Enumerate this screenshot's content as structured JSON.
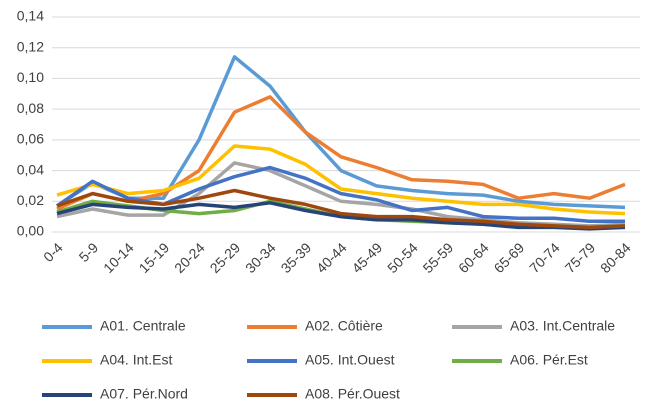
{
  "chart_data": {
    "type": "line",
    "categories": [
      "0-4",
      "5-9",
      "10-14",
      "15-19",
      "20-24",
      "25-29",
      "30-34",
      "35-39",
      "40-44",
      "45-49",
      "50-54",
      "55-59",
      "60-64",
      "65-69",
      "70-74",
      "75-79",
      "80-84"
    ],
    "ylim": [
      0,
      0.14
    ],
    "yticks": [
      {
        "value": 0,
        "label": "0,00"
      },
      {
        "value": 0.02,
        "label": "0,02"
      },
      {
        "value": 0.04,
        "label": "0,04"
      },
      {
        "value": 0.06,
        "label": "0,06"
      },
      {
        "value": 0.08,
        "label": "0,08"
      },
      {
        "value": 0.1,
        "label": "0,10"
      },
      {
        "value": 0.12,
        "label": "0,12"
      },
      {
        "value": 0.14,
        "label": "0,14"
      }
    ],
    "grid": true,
    "series": [
      {
        "name": "A01. Centrale",
        "color": "#5b9bd5",
        "values": [
          0.017,
          0.032,
          0.022,
          0.022,
          0.06,
          0.114,
          0.095,
          0.065,
          0.04,
          0.03,
          0.027,
          0.025,
          0.024,
          0.02,
          0.018,
          0.017,
          0.016
        ]
      },
      {
        "name": "A02. Côtière",
        "color": "#ed7d31",
        "values": [
          0.015,
          0.025,
          0.02,
          0.025,
          0.04,
          0.078,
          0.088,
          0.065,
          0.049,
          0.042,
          0.034,
          0.033,
          0.031,
          0.022,
          0.025,
          0.022,
          0.031
        ]
      },
      {
        "name": "A03. Int.Centrale",
        "color": "#a5a5a5",
        "values": [
          0.01,
          0.015,
          0.011,
          0.011,
          0.025,
          0.045,
          0.04,
          0.03,
          0.02,
          0.018,
          0.015,
          0.01,
          0.008,
          0.006,
          0.005,
          0.004,
          0.005
        ]
      },
      {
        "name": "A04. Int.Est",
        "color": "#ffc000",
        "values": [
          0.024,
          0.031,
          0.025,
          0.027,
          0.035,
          0.056,
          0.054,
          0.044,
          0.028,
          0.025,
          0.022,
          0.02,
          0.018,
          0.018,
          0.015,
          0.013,
          0.012
        ]
      },
      {
        "name": "A05. Int.Ouest",
        "color": "#4472c4",
        "values": [
          0.017,
          0.033,
          0.022,
          0.018,
          0.028,
          0.036,
          0.042,
          0.035,
          0.025,
          0.021,
          0.014,
          0.016,
          0.01,
          0.009,
          0.009,
          0.007,
          0.007
        ]
      },
      {
        "name": "A06. Pér.Est",
        "color": "#70ad47",
        "values": [
          0.013,
          0.02,
          0.017,
          0.014,
          0.012,
          0.014,
          0.02,
          0.015,
          0.01,
          0.008,
          0.007,
          0.006,
          0.005,
          0.004,
          0.004,
          0.003,
          0.004
        ]
      },
      {
        "name": "A07. Pér.Nord",
        "color": "#264478",
        "values": [
          0.012,
          0.018,
          0.016,
          0.015,
          0.018,
          0.016,
          0.019,
          0.014,
          0.01,
          0.008,
          0.008,
          0.006,
          0.005,
          0.003,
          0.003,
          0.002,
          0.003
        ]
      },
      {
        "name": "A08. Pér.Ouest",
        "color": "#9e480e",
        "values": [
          0.017,
          0.025,
          0.02,
          0.018,
          0.022,
          0.027,
          0.022,
          0.018,
          0.012,
          0.01,
          0.01,
          0.008,
          0.007,
          0.005,
          0.004,
          0.003,
          0.004
        ]
      }
    ]
  }
}
